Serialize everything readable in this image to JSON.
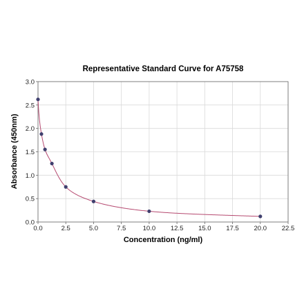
{
  "chart_data": {
    "type": "scatter",
    "title": "Representative Standard Curve for A75758",
    "xlabel": "Concentration (ng/ml)",
    "ylabel": "Absorbance (450nm)",
    "xlim": [
      0,
      22.5
    ],
    "ylim": [
      0,
      3.0
    ],
    "xticks": [
      "0.0",
      "2.5",
      "5.0",
      "7.5",
      "10.0",
      "12.5",
      "15.0",
      "17.5",
      "20.0",
      "22.5"
    ],
    "yticks": [
      "0.0",
      "0.5",
      "1.0",
      "1.5",
      "2.0",
      "2.5",
      "3.0"
    ],
    "grid": true,
    "points": [
      {
        "x": 0,
        "y": 2.62
      },
      {
        "x": 0.31,
        "y": 1.88
      },
      {
        "x": 0.63,
        "y": 1.55
      },
      {
        "x": 1.25,
        "y": 1.25
      },
      {
        "x": 2.5,
        "y": 0.75
      },
      {
        "x": 5,
        "y": 0.44
      },
      {
        "x": 10,
        "y": 0.23
      },
      {
        "x": 20,
        "y": 0.12
      }
    ],
    "colors": {
      "point": "#3f3f6e",
      "curve": "#b5486f",
      "grid": "#d9d9d9"
    }
  }
}
